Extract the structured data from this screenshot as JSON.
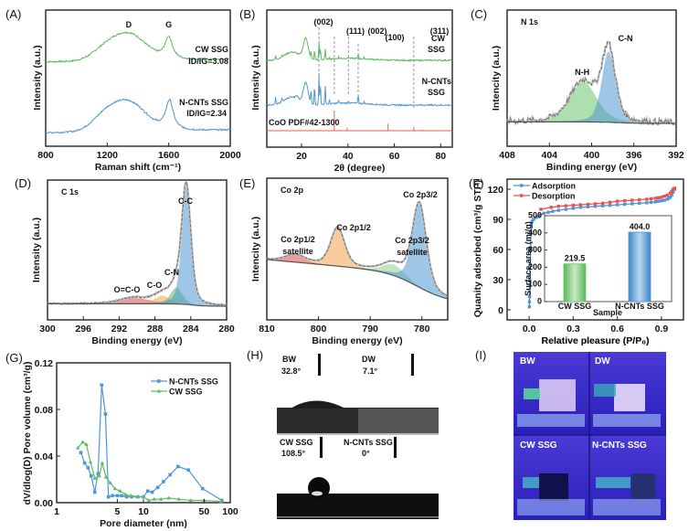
{
  "figure": {
    "panel_labels": [
      "(A)",
      "(B)",
      "(C)",
      "(D)",
      "(E)",
      "(F)",
      "(G)",
      "(H)",
      "(I)"
    ]
  },
  "chart_data": [
    {
      "id": "A",
      "type": "line",
      "xlabel": "Raman shift (cm⁻¹)",
      "ylabel": "Intensity (a.u.)",
      "xlim": [
        800,
        2000
      ],
      "xticks": [
        800,
        1200,
        1600,
        2000
      ],
      "peak_labels": [
        {
          "text": "D",
          "x": 1340
        },
        {
          "text": "G",
          "x": 1600
        }
      ],
      "series": [
        {
          "name": "CW SSG",
          "ratio": "Iₓ/Iₔ=3.08",
          "ratio_text": "ID/IG=3.08",
          "color": "#5dbb63",
          "peaks": [
            {
              "x": 1340,
              "h": 0.55
            },
            {
              "x": 1600,
              "h": 0.55
            }
          ],
          "offset": 0.62
        },
        {
          "name": "N-CNTs SSG",
          "ratio_text": "ID/IG=2.34",
          "color": "#4f97d4",
          "peaks": [
            {
              "x": 1340,
              "h": 0.6
            },
            {
              "x": 1605,
              "h": 0.73
            }
          ],
          "offset": 0.1
        }
      ]
    },
    {
      "id": "B",
      "type": "line",
      "xlabel": "2θ (degree)",
      "ylabel": "Intensity (a.u.)",
      "xlim": [
        5,
        85
      ],
      "xticks": [
        20,
        40,
        60,
        80
      ],
      "series": [
        {
          "name": "CW SSG",
          "label_lines": [
            "CW",
            "SSG"
          ],
          "color": "#5dbb63"
        },
        {
          "name": "N-CNTs SSG",
          "label_lines": [
            "N-CNTs",
            "SSG"
          ],
          "color": "#4f97d4"
        }
      ],
      "reference": {
        "name": "CoO PDF#42-1300",
        "color": "#ee5a5a",
        "lines": [
          {
            "x": 34.1,
            "h": 1.0
          },
          {
            "x": 39.6,
            "h": 0.15
          },
          {
            "x": 57.3,
            "h": 0.35
          },
          {
            "x": 68.4,
            "h": 0.2
          },
          {
            "x": 72.0,
            "h": 0.05
          }
        ]
      },
      "reflections": [
        {
          "text": "(002)",
          "x": 27.5,
          "color": "#111"
        },
        {
          "text": "(111)",
          "x": 34.1,
          "color": "#ee5a5a"
        },
        {
          "text": "(002)",
          "x": 40.2,
          "color": "#ee5a5a"
        },
        {
          "text": "(100)",
          "x": 44.4,
          "color": "#111"
        },
        {
          "text": "(311)",
          "x": 68.4,
          "color": "#ee5a5a"
        }
      ]
    },
    {
      "id": "C",
      "type": "area",
      "title": "N 1s",
      "xlabel": "Binding energy (eV)",
      "ylabel": "Intencity (a.u.)",
      "xlim": [
        408,
        392
      ],
      "xticks": [
        408,
        404,
        400,
        396,
        392
      ],
      "components": [
        {
          "name": "N-H",
          "center": 400.8,
          "height": 0.55,
          "fwhm": 3.0,
          "color": "#6cc46c"
        },
        {
          "name": "C-N",
          "center": 398.4,
          "height": 0.97,
          "fwhm": 1.5,
          "color": "#4f97d4"
        }
      ]
    },
    {
      "id": "D",
      "type": "area",
      "title": "C 1s",
      "xlabel": "Binding energy (eV)",
      "ylabel": "Intensity (a.u.)",
      "xlim": [
        300,
        280
      ],
      "xticks": [
        300,
        296,
        292,
        288,
        284,
        280
      ],
      "components": [
        {
          "name": "O=C-O",
          "center": 290.2,
          "height": 0.05,
          "fwhm": 4.0,
          "color": "#e04848"
        },
        {
          "name": "C-O",
          "center": 287.2,
          "height": 0.07,
          "fwhm": 2.0,
          "color": "#f5a04a"
        },
        {
          "name": "C-N",
          "center": 285.6,
          "height": 0.14,
          "fwhm": 1.6,
          "color": "#5dbb63"
        },
        {
          "name": "C-C",
          "center": 284.5,
          "height": 1.0,
          "fwhm": 1.2,
          "color": "#4f97d4"
        }
      ]
    },
    {
      "id": "E",
      "type": "area",
      "title": "Co 2p",
      "xlabel": "Binding energy (eV)",
      "ylabel": "Intencity (a.u.)",
      "xlim": [
        810,
        775
      ],
      "xticks": [
        810,
        800,
        790,
        780
      ],
      "components": [
        {
          "name": "Co 2p1/2 satellite",
          "label_lines": [
            "Co 2p1/2",
            "satellite"
          ],
          "center": 804.5,
          "height": 0.08,
          "fwhm": 4.5,
          "color": "#e04848"
        },
        {
          "name": "Co 2p1/2",
          "center": 796.3,
          "height": 0.42,
          "fwhm": 3.2,
          "color": "#f5a04a"
        },
        {
          "name": "Co 2p3/2 satellite",
          "label_lines": [
            "Co 2p3/2",
            "satellite"
          ],
          "center": 785.5,
          "height": 0.12,
          "fwhm": 5.0,
          "color": "#8fd08a"
        },
        {
          "name": "Co 2p3/2",
          "center": 780.5,
          "height": 0.92,
          "fwhm": 3.2,
          "color": "#4f97d4"
        }
      ]
    },
    {
      "id": "F",
      "type": "line",
      "xlabel": "Relative pleasure (P/P₀)",
      "ylabel": "Quanity adsorbed (cm³/g STP)",
      "xlim": [
        -0.15,
        1.05
      ],
      "ylim": [
        -10,
        130
      ],
      "xticks": [
        0.0,
        0.3,
        0.6,
        0.9
      ],
      "yticks": [
        0,
        30,
        60,
        90,
        120
      ],
      "legend": "top-left",
      "series": [
        {
          "name": "Adsorption",
          "color": "#4f97d4",
          "x": [
            0.001,
            0.002,
            0.003,
            0.005,
            0.008,
            0.01,
            0.012,
            0.015,
            0.02,
            0.03,
            0.05,
            0.07,
            0.1,
            0.13,
            0.16,
            0.2,
            0.25,
            0.3,
            0.35,
            0.4,
            0.45,
            0.5,
            0.55,
            0.6,
            0.65,
            0.7,
            0.75,
            0.8,
            0.83,
            0.86,
            0.88,
            0.9,
            0.92,
            0.94,
            0.95,
            0.96,
            0.97,
            0.98,
            0.99
          ],
          "y": [
            3,
            8,
            13,
            29,
            45,
            61,
            76,
            86,
            88,
            90,
            92,
            94,
            96,
            97,
            98,
            99,
            100,
            101,
            102,
            102.5,
            103,
            103.5,
            104,
            104.5,
            105,
            105.5,
            106,
            106.5,
            107,
            107.5,
            108,
            108.5,
            109,
            110,
            111,
            112,
            114,
            117,
            120
          ]
        },
        {
          "name": "Desorption",
          "color": "#ee5050",
          "x": [
            0.08,
            0.15,
            0.2,
            0.25,
            0.3,
            0.35,
            0.4,
            0.45,
            0.5,
            0.55,
            0.6,
            0.65,
            0.7,
            0.75,
            0.8,
            0.83,
            0.86,
            0.88,
            0.9,
            0.92,
            0.94,
            0.96,
            0.97,
            0.98,
            0.99
          ],
          "y": [
            100,
            102,
            103,
            103.5,
            104,
            104.5,
            105,
            105.5,
            106,
            107,
            108,
            108.5,
            109,
            109.5,
            110,
            110.5,
            111,
            111.5,
            112,
            113,
            114,
            116,
            118,
            120,
            121
          ]
        }
      ],
      "inset": {
        "type": "bar",
        "xlabel": "Sample",
        "ylabel": "Surface area (m²/g)",
        "ylim": [
          0,
          500
        ],
        "yticks": [
          0,
          100,
          200,
          300,
          400,
          500
        ],
        "categories": [
          "CW SSG",
          "N-CNTs SSG"
        ],
        "values": [
          219.5,
          404.0
        ],
        "value_labels": [
          "219.5",
          "404.0"
        ],
        "colors": [
          "#6cc46c",
          "#4f97d4"
        ]
      }
    },
    {
      "id": "G",
      "type": "line",
      "xlabel": "Pore diameter (nm)",
      "ylabel": "dV/dlog(D) Pore volume (cm³/g)",
      "xscale": "log",
      "xlim": [
        1,
        100
      ],
      "ylim": [
        0,
        0.12
      ],
      "xticks": [
        1,
        5,
        10,
        50,
        100
      ],
      "yticks": [
        0.0,
        0.04,
        0.08,
        0.12
      ],
      "ytick_labels": [
        "0.00",
        "0.04",
        "0.08",
        "0.12"
      ],
      "legend": "top-right",
      "series": [
        {
          "name": "N-CNTs SSG",
          "marker": "square",
          "color": "#4f97d4",
          "x": [
            1.9,
            2.1,
            2.3,
            2.5,
            2.75,
            3.0,
            3.3,
            3.65,
            3.95,
            4.4,
            5.0,
            5.6,
            6.4,
            7.3,
            8.6,
            10.0,
            11.2,
            12.6,
            14.6,
            17.0,
            20.3,
            25.0,
            33.0,
            48.0,
            80.0
          ],
          "y": [
            0.043,
            0.034,
            0.03,
            0.023,
            0.009,
            0.025,
            0.101,
            0.076,
            0.005,
            0.006,
            0.006,
            0.006,
            0.005,
            0.005,
            0.005,
            0.005,
            0.01,
            0.009,
            0.013,
            0.018,
            0.024,
            0.031,
            0.028,
            0.012,
            0.002
          ]
        },
        {
          "name": "CW SSG",
          "marker": "triangle",
          "color": "#5dbb63",
          "x": [
            1.75,
            2.0,
            2.2,
            2.45,
            2.75,
            3.1,
            3.35,
            3.7,
            4.15,
            4.7,
            5.4,
            6.2,
            7.2,
            8.5,
            10.0,
            11.5,
            13.3,
            15.9,
            19.6,
            25.5,
            35.0,
            50.0,
            78.0
          ],
          "y": [
            0.047,
            0.052,
            0.05,
            0.035,
            0.021,
            0.023,
            0.034,
            0.022,
            0.017,
            0.012,
            0.01,
            0.007,
            0.006,
            0.005,
            0.005,
            0.002,
            0.003,
            0.003,
            0.004,
            0.003,
            0.002,
            0.002,
            0.001
          ]
        }
      ]
    }
  ],
  "photos": {
    "H": {
      "items": [
        {
          "name": "BW",
          "angle": "32.8°"
        },
        {
          "name": "DW",
          "angle": "7.1°"
        },
        {
          "name": "CW SSG",
          "angle": "108.5°"
        },
        {
          "name": "N-CNTs SSG",
          "angle": "0°"
        }
      ]
    },
    "I": {
      "items": [
        {
          "name": "BW"
        },
        {
          "name": "DW"
        },
        {
          "name": "CW SSG"
        },
        {
          "name": "N-CNTs SSG"
        }
      ]
    }
  }
}
